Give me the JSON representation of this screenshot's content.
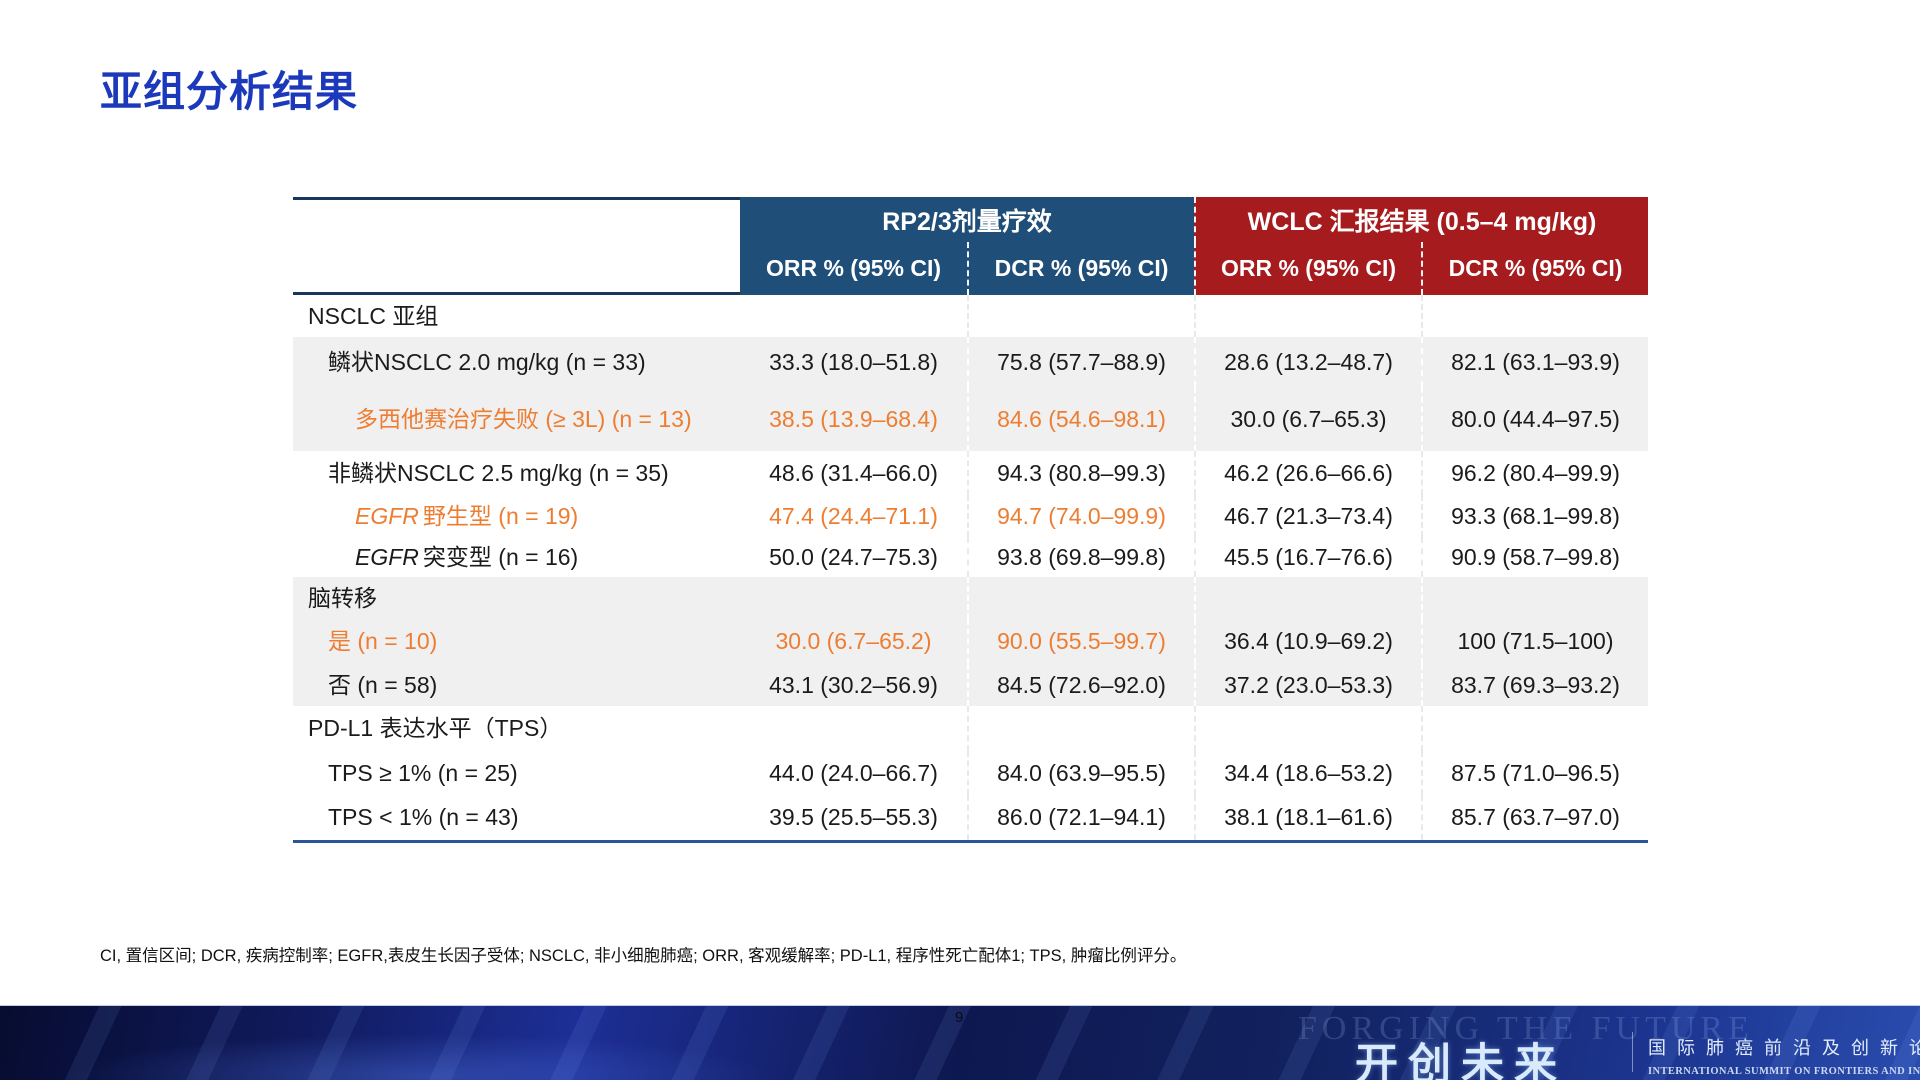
{
  "title": "亚组分析结果",
  "colors": {
    "title_blue": "#1C39BB",
    "header_blue": "#1F4E79",
    "header_red": "#A61B1E",
    "accent_orange": "#ED7D31",
    "row_shade": "#F1F0F1"
  },
  "table": {
    "group_headers": [
      {
        "label": "RP2/3剂量疗效"
      },
      {
        "label": "WCLC 汇报结果 (0.5–4 mg/kg)"
      }
    ],
    "col_headers": [
      "ORR % (95% CI)",
      "DCR % (95% CI)",
      "ORR % (95% CI)",
      "DCR % (95% CI)"
    ],
    "rows": [
      {
        "type": "category",
        "shade": false,
        "indent": 0,
        "label": "NSCLC 亚组",
        "values": [
          "",
          "",
          "",
          ""
        ]
      },
      {
        "type": "data",
        "shade": true,
        "indent": 1,
        "label": "鳞状NSCLC 2.0 mg/kg (n = 33)",
        "values": [
          "33.3 (18.0–51.8)",
          "75.8 (57.7–88.9)",
          "28.6 (13.2–48.7)",
          "82.1 (63.1–93.9)"
        ]
      },
      {
        "type": "data",
        "shade": true,
        "indent": 2,
        "orange": true,
        "orange_cols": [
          0,
          1
        ],
        "label": "多西他赛治疗失败 (≥ 3L) (n = 13)",
        "values": [
          "38.5 (13.9–68.4)",
          "84.6 (54.6–98.1)",
          "30.0 (6.7–65.3)",
          "80.0 (44.4–97.5)"
        ]
      },
      {
        "type": "data",
        "shade": false,
        "indent": 1,
        "label": "非鳞状NSCLC 2.5 mg/kg (n = 35)",
        "values": [
          "48.6 (31.4–66.0)",
          "94.3 (80.8–99.3)",
          "46.2 (26.6–66.6)",
          "96.2 (80.4–99.9)"
        ]
      },
      {
        "type": "data",
        "shade": false,
        "indent": 2,
        "orange": true,
        "orange_cols": [
          0,
          1
        ],
        "italic_prefix": "EGFR",
        "label": "野生型 (n = 19)",
        "values": [
          "47.4 (24.4–71.1)",
          "94.7 (74.0–99.9)",
          "46.7 (21.3–73.4)",
          "93.3 (68.1–99.8)"
        ]
      },
      {
        "type": "data",
        "shade": false,
        "indent": 2,
        "italic_prefix": "EGFR",
        "label": "突变型 (n = 16)",
        "values": [
          "50.0 (24.7–75.3)",
          "93.8 (69.8–99.8)",
          "45.5 (16.7–76.6)",
          "90.9 (58.7–99.8)"
        ]
      },
      {
        "type": "category",
        "shade": true,
        "indent": 0,
        "label": "脑转移",
        "values": [
          "",
          "",
          "",
          ""
        ]
      },
      {
        "type": "data",
        "shade": true,
        "indent": 1,
        "orange": true,
        "orange_cols": [
          0,
          1
        ],
        "label": "是 (n = 10)",
        "values": [
          "30.0 (6.7–65.2)",
          "90.0 (55.5–99.7)",
          "36.4 (10.9–69.2)",
          "100 (71.5–100)"
        ]
      },
      {
        "type": "data",
        "shade": true,
        "indent": 1,
        "label": "否 (n = 58)",
        "values": [
          "43.1 (30.2–56.9)",
          "84.5 (72.6–92.0)",
          "37.2 (23.0–53.3)",
          "83.7 (69.3–93.2)"
        ]
      },
      {
        "type": "category",
        "shade": false,
        "indent": 0,
        "label": "PD-L1 表达水平（TPS）",
        "values": [
          "",
          "",
          "",
          ""
        ]
      },
      {
        "type": "data",
        "shade": false,
        "indent": 1,
        "label": "TPS ≥ 1% (n = 25)",
        "values": [
          "44.0 (24.0–66.7)",
          "84.0 (63.9–95.5)",
          "34.4 (18.6–53.2)",
          "87.5 (71.0–96.5)"
        ]
      },
      {
        "type": "data",
        "shade": false,
        "indent": 1,
        "label": "TPS < 1% (n = 43)",
        "values": [
          "39.5 (25.5–55.3)",
          "86.0 (72.1–94.1)",
          "38.1 (18.1–61.6)",
          "85.7 (63.7–97.0)"
        ]
      }
    ]
  },
  "footnote": "CI, 置信区间; DCR, 疾病控制率; EGFR,表皮生长因子受体; NSCLC, 非小细胞肺癌; ORR, 客观缓解率; PD-L1, 程序性死亡配体1; TPS, 肿瘤比例评分。",
  "footer": {
    "page": "9",
    "ghost_text": "FORGING THE FUTURE",
    "logo_cn": "开创未来",
    "summit_cn": "国际肺癌前沿及创新论坛",
    "summit_en": "INTERNATIONAL SUMMIT ON FRONTIERS AND INNOVATIONS IN LUNG CANCER"
  }
}
